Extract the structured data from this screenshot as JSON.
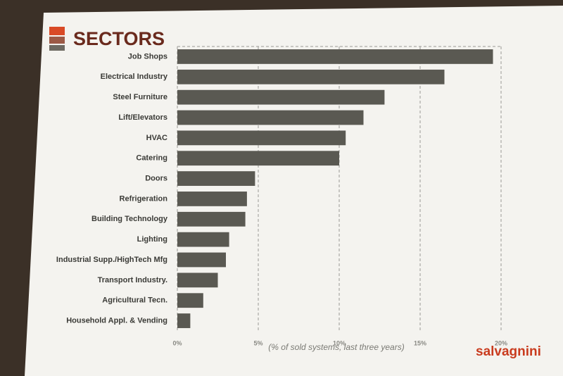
{
  "chart_data": {
    "type": "hbar",
    "title": "SECTORS",
    "x_label": "(% of sold systems, last three years)",
    "brand": "salvagnini",
    "categories": [
      "Job Shops",
      "Electrical Industry",
      "Steel Furniture",
      "Lift/Elevators",
      "HVAC",
      "Catering",
      "Doors",
      "Refrigeration",
      "Building Technology",
      "Lighting",
      "Industrial Supp./HighTech Mfg",
      "Transport Industry.",
      "Agricultural Tecn.",
      "Household Appl. & Vending"
    ],
    "values": [
      19.5,
      16.5,
      12.8,
      11.5,
      10.4,
      10.0,
      4.8,
      4.3,
      4.2,
      3.2,
      3.0,
      2.5,
      1.6,
      0.8
    ],
    "color": "#5a5952",
    "xlim": [
      0,
      20
    ],
    "xticks": [
      {
        "value": 0,
        "label": "0%"
      },
      {
        "value": 5,
        "label": "5%"
      },
      {
        "value": 10,
        "label": "10%"
      },
      {
        "value": 15,
        "label": "15%"
      },
      {
        "value": 20,
        "label": "20%"
      }
    ],
    "grid": true
  }
}
